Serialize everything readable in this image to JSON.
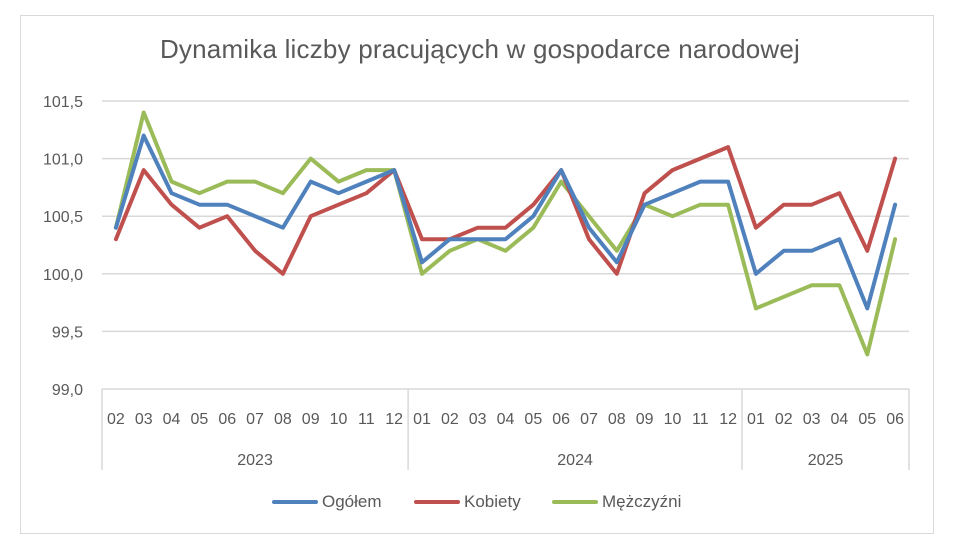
{
  "chart_data": {
    "type": "line",
    "title": "Dynamika liczby pracujących w gospodarce narodowej",
    "xlabel": "",
    "ylabel": "",
    "ylim": [
      99.0,
      101.5
    ],
    "yticks": [
      "101,5",
      "101,0",
      "100,5",
      "100,0",
      "99,5",
      "99,0"
    ],
    "grid": true,
    "legend_position": "bottom",
    "year_groups": [
      {
        "label": "2023",
        "months": [
          "02",
          "03",
          "04",
          "05",
          "06",
          "07",
          "08",
          "09",
          "10",
          "11",
          "12"
        ]
      },
      {
        "label": "2024",
        "months": [
          "01",
          "02",
          "03",
          "04",
          "05",
          "06",
          "07",
          "08",
          "09",
          "10",
          "11",
          "12"
        ]
      },
      {
        "label": "2025",
        "months": [
          "01",
          "02",
          "03",
          "04",
          "05",
          "06"
        ]
      }
    ],
    "categories": [
      "2023-02",
      "2023-03",
      "2023-04",
      "2023-05",
      "2023-06",
      "2023-07",
      "2023-08",
      "2023-09",
      "2023-10",
      "2023-11",
      "2023-12",
      "2024-01",
      "2024-02",
      "2024-03",
      "2024-04",
      "2024-05",
      "2024-06",
      "2024-07",
      "2024-08",
      "2024-09",
      "2024-10",
      "2024-11",
      "2024-12",
      "2025-01",
      "2025-02",
      "2025-03",
      "2025-04",
      "2025-05",
      "2025-06"
    ],
    "series": [
      {
        "name": "Ogółem",
        "color": "#4F81BD",
        "values": [
          100.4,
          101.2,
          100.7,
          100.6,
          100.6,
          100.5,
          100.4,
          100.8,
          100.7,
          100.8,
          100.9,
          100.1,
          100.3,
          100.3,
          100.3,
          100.5,
          100.9,
          100.4,
          100.1,
          100.6,
          100.7,
          100.8,
          100.8,
          100.0,
          100.2,
          100.2,
          100.3,
          99.7,
          100.6
        ]
      },
      {
        "name": "Kobiety",
        "color": "#C0504D",
        "values": [
          100.3,
          100.9,
          100.6,
          100.4,
          100.5,
          100.2,
          100.0,
          100.5,
          100.6,
          100.7,
          100.9,
          100.3,
          100.3,
          100.4,
          100.4,
          100.6,
          100.9,
          100.3,
          100.0,
          100.7,
          100.9,
          101.0,
          101.1,
          100.4,
          100.6,
          100.6,
          100.7,
          100.2,
          101.0
        ]
      },
      {
        "name": "Mężczyźni",
        "color": "#9BBB59",
        "values": [
          100.4,
          101.4,
          100.8,
          100.7,
          100.8,
          100.8,
          100.7,
          101.0,
          100.8,
          100.9,
          100.9,
          100.0,
          100.2,
          100.3,
          100.2,
          100.4,
          100.8,
          100.5,
          100.2,
          100.6,
          100.5,
          100.6,
          100.6,
          99.7,
          99.8,
          99.9,
          99.9,
          99.3,
          100.3
        ]
      }
    ]
  },
  "legend": [
    {
      "label": "Ogółem",
      "color": "#4F81BD"
    },
    {
      "label": "Kobiety",
      "color": "#C0504D"
    },
    {
      "label": "Mężczyźni",
      "color": "#9BBB59"
    }
  ]
}
